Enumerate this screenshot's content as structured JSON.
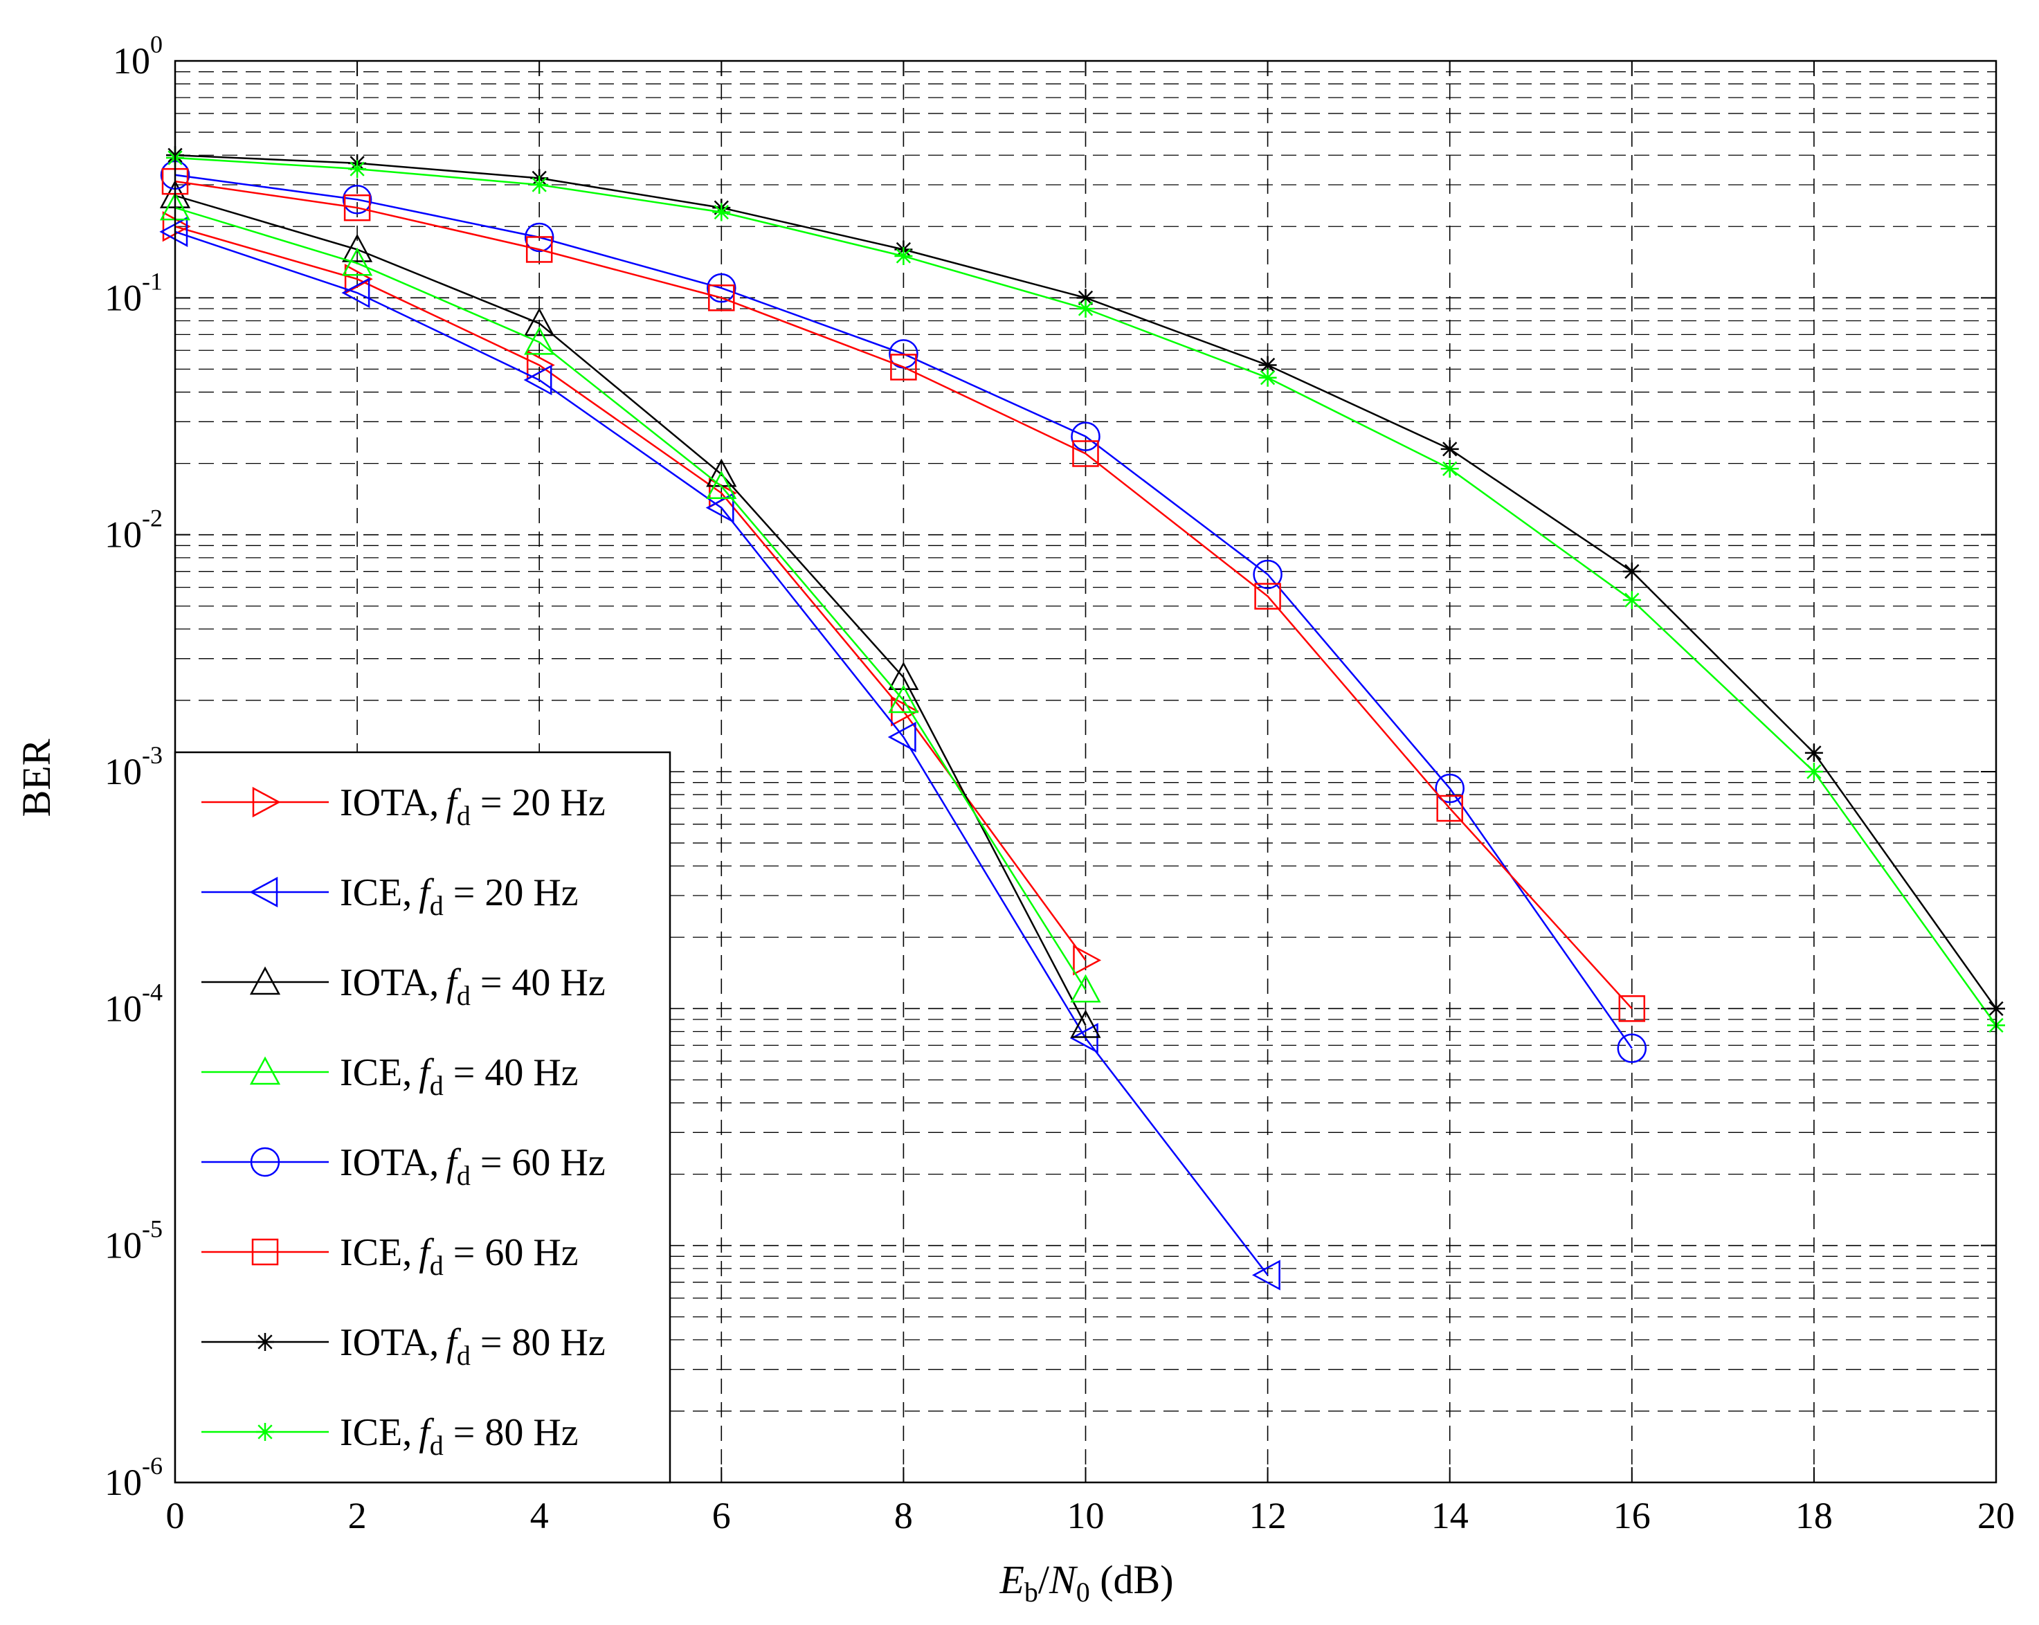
{
  "chart_data": {
    "type": "line",
    "title": "",
    "xlabel": {
      "main": "E",
      "sub": "b",
      "slash": "/",
      "main2": "N",
      "sub2": "0",
      "unit": " (dB)"
    },
    "ylabel": "BER",
    "xlim": [
      0,
      20
    ],
    "ylim": [
      1e-06,
      1
    ],
    "yscale": "log",
    "grid": true,
    "legend_position": "bottom-left",
    "x_ticks": [
      "0",
      "2",
      "4",
      "6",
      "8",
      "10",
      "12",
      "14",
      "16",
      "18",
      "20"
    ],
    "y_ticks": [
      {
        "base": "10",
        "exp": "0"
      },
      {
        "base": "10",
        "exp": "-1"
      },
      {
        "base": "10",
        "exp": "-2"
      },
      {
        "base": "10",
        "exp": "-3"
      },
      {
        "base": "10",
        "exp": "-4"
      },
      {
        "base": "10",
        "exp": "-5"
      },
      {
        "base": "10",
        "exp": "-6"
      }
    ],
    "series": [
      {
        "name": "IOTA, f_d = 20 Hz",
        "label_prefix": "IOTA,",
        "label_var": "f",
        "label_sub": "d",
        "label_suffix": " = 20 Hz",
        "color": "#ff0000",
        "marker": "triangle-right",
        "x": [
          0,
          2,
          4,
          6,
          8,
          10
        ],
        "y": [
          0.2,
          0.12,
          0.052,
          0.015,
          0.0018,
          0.00016
        ]
      },
      {
        "name": "ICE, f_d = 20 Hz",
        "label_prefix": "ICE,",
        "label_var": "f",
        "label_sub": "d",
        "label_suffix": " = 20 Hz",
        "color": "#0000ff",
        "marker": "triangle-left",
        "x": [
          0,
          2,
          4,
          6,
          8,
          10,
          12
        ],
        "y": [
          0.19,
          0.105,
          0.045,
          0.013,
          0.0014,
          7.5e-05,
          7.5e-06
        ]
      },
      {
        "name": "IOTA, f_d = 40 Hz",
        "label_prefix": "IOTA,",
        "label_var": "f",
        "label_sub": "d",
        "label_suffix": " = 40 Hz",
        "color": "#000000",
        "marker": "triangle-up",
        "x": [
          0,
          2,
          4,
          6,
          8,
          10
        ],
        "y": [
          0.27,
          0.16,
          0.078,
          0.018,
          0.0025,
          8.5e-05
        ]
      },
      {
        "name": "ICE, f_d = 40 Hz",
        "label_prefix": "ICE,",
        "label_var": "f",
        "label_sub": "d",
        "label_suffix": " = 40 Hz",
        "color": "#00ff00",
        "marker": "triangle-up",
        "x": [
          0,
          2,
          4,
          6,
          8,
          10
        ],
        "y": [
          0.24,
          0.14,
          0.065,
          0.016,
          0.002,
          0.00012
        ]
      },
      {
        "name": "IOTA, f_d = 60 Hz",
        "label_prefix": "IOTA,",
        "label_var": "f",
        "label_sub": "d",
        "label_suffix": " = 60 Hz",
        "color": "#0000ff",
        "marker": "circle",
        "x": [
          0,
          2,
          4,
          6,
          8,
          10,
          12,
          14,
          16
        ],
        "y": [
          0.33,
          0.26,
          0.18,
          0.11,
          0.058,
          0.026,
          0.0068,
          0.00085,
          6.8e-05
        ]
      },
      {
        "name": "ICE, f_d = 60 Hz",
        "label_prefix": "ICE,",
        "label_var": "f",
        "label_sub": "d",
        "label_suffix": " = 60 Hz",
        "color": "#ff0000",
        "marker": "square",
        "x": [
          0,
          2,
          4,
          6,
          8,
          10,
          12,
          14,
          16
        ],
        "y": [
          0.31,
          0.24,
          0.16,
          0.1,
          0.051,
          0.022,
          0.0055,
          0.0007,
          0.0001
        ]
      },
      {
        "name": "IOTA, f_d = 80 Hz",
        "label_prefix": "IOTA,",
        "label_var": "f",
        "label_sub": "d",
        "label_suffix": " = 80 Hz",
        "color": "#000000",
        "marker": "asterisk",
        "x": [
          0,
          2,
          4,
          6,
          8,
          10,
          12,
          14,
          16,
          18,
          20
        ],
        "y": [
          0.4,
          0.37,
          0.32,
          0.24,
          0.16,
          0.1,
          0.052,
          0.023,
          0.007,
          0.0012,
          0.0001
        ]
      },
      {
        "name": "ICE, f_d = 80 Hz",
        "label_prefix": "ICE,",
        "label_var": "f",
        "label_sub": "d",
        "label_suffix": " = 80 Hz",
        "color": "#00ff00",
        "marker": "asterisk",
        "x": [
          0,
          2,
          4,
          6,
          8,
          10,
          12,
          14,
          16,
          18,
          20
        ],
        "y": [
          0.39,
          0.35,
          0.3,
          0.23,
          0.15,
          0.09,
          0.046,
          0.019,
          0.0053,
          0.001,
          8.5e-05
        ]
      }
    ]
  }
}
